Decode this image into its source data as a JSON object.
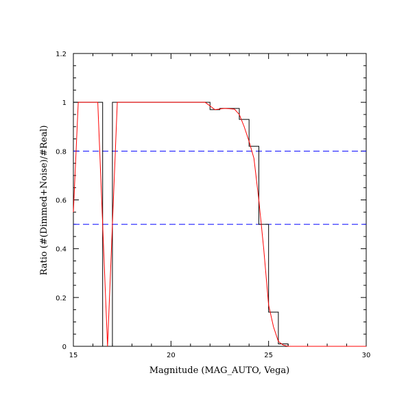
{
  "chart_data": {
    "type": "line",
    "title": "",
    "xlabel": "Magnitude (MAG_AUTO, Vega)",
    "ylabel": "Ratio (#(Dimmed+Noise)/#Real)",
    "xlim": [
      15,
      30
    ],
    "ylim": [
      0,
      1.2
    ],
    "x_ticks": [
      15,
      20,
      25,
      30
    ],
    "x_tick_labels": [
      "15",
      "20",
      "25",
      "30"
    ],
    "y_ticks": [
      0,
      0.2,
      0.4,
      0.6,
      0.8,
      1,
      1.2
    ],
    "y_tick_labels": [
      "0",
      "0.2",
      "0.4",
      "0.6",
      "0.8",
      "1",
      "1.2"
    ],
    "grid": false,
    "legend": "none",
    "reference_lines": [
      {
        "y": 0.8,
        "color": "#0000ff",
        "style": "dashed"
      },
      {
        "y": 0.5,
        "color": "#0000ff",
        "style": "dashed"
      }
    ],
    "series": [
      {
        "style": "step",
        "color": "#000000",
        "bin_width": 0.5,
        "bins": [
          15.0,
          15.5,
          16.0,
          16.5,
          17.0,
          17.5,
          18.0,
          18.5,
          19.0,
          19.5,
          20.0,
          20.5,
          21.0,
          21.5,
          22.0,
          22.5,
          23.0,
          23.5,
          24.0,
          24.5,
          25.0,
          25.5,
          26.0,
          26.5,
          27.0,
          27.5,
          28.0,
          28.5,
          29.0,
          29.5
        ],
        "values": [
          1.0,
          1.0,
          1.0,
          0.0,
          1.0,
          1.0,
          1.0,
          1.0,
          1.0,
          1.0,
          1.0,
          1.0,
          1.0,
          1.0,
          0.97,
          0.975,
          0.975,
          0.93,
          0.82,
          0.5,
          0.14,
          0.01,
          0.0,
          0.0,
          0.0,
          0.0,
          0.0,
          0.0,
          0.0,
          0.0
        ]
      },
      {
        "style": "line",
        "color": "#ff0000",
        "x": [
          15.0,
          15.25,
          15.75,
          16.25,
          16.5,
          16.75,
          17.0,
          17.25,
          17.75,
          18.25,
          18.75,
          19.25,
          19.75,
          20.25,
          20.75,
          21.25,
          21.75,
          22.0,
          22.25,
          22.75,
          23.25,
          23.5,
          23.75,
          24.0,
          24.25,
          24.5,
          24.75,
          25.0,
          25.25,
          25.5,
          25.75,
          26.0,
          26.25,
          27.0,
          28.0,
          29.0,
          30.0
        ],
        "y": [
          0.55,
          1.0,
          1.0,
          1.0,
          0.5,
          0.0,
          0.5,
          1.0,
          1.0,
          1.0,
          1.0,
          1.0,
          1.0,
          1.0,
          1.0,
          1.0,
          1.0,
          0.985,
          0.97,
          0.975,
          0.972,
          0.95,
          0.9,
          0.84,
          0.77,
          0.6,
          0.4,
          0.17,
          0.08,
          0.02,
          0.005,
          0.0,
          0.0,
          0.0,
          0.0,
          0.0,
          0.0
        ]
      }
    ]
  }
}
